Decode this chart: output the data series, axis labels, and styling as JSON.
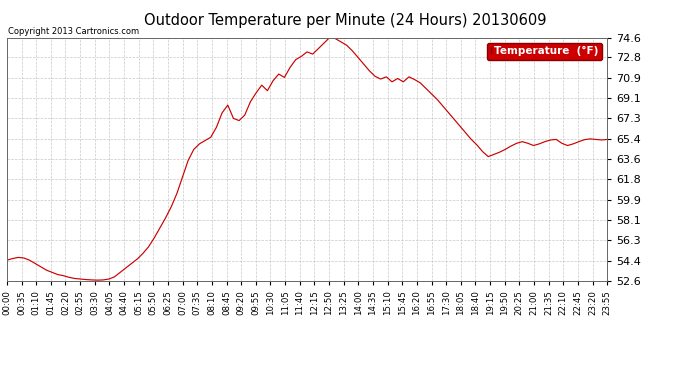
{
  "title": "Outdoor Temperature per Minute (24 Hours) 20130609",
  "copyright_text": "Copyright 2013 Cartronics.com",
  "legend_label": "Temperature  (°F)",
  "line_color": "#cc0000",
  "legend_bg": "#cc0000",
  "legend_text_color": "#ffffff",
  "bg_color": "#ffffff",
  "grid_color": "#bbbbbb",
  "yticks": [
    52.6,
    54.4,
    56.3,
    58.1,
    59.9,
    61.8,
    63.6,
    65.4,
    67.3,
    69.1,
    70.9,
    72.8,
    74.6
  ],
  "ylim": [
    52.6,
    74.6
  ],
  "xtick_labels": [
    "00:00",
    "00:35",
    "01:10",
    "01:45",
    "02:20",
    "02:55",
    "03:30",
    "04:05",
    "04:40",
    "05:15",
    "05:50",
    "06:25",
    "07:00",
    "07:35",
    "08:10",
    "08:45",
    "09:20",
    "09:55",
    "10:30",
    "11:05",
    "11:40",
    "12:15",
    "12:50",
    "13:25",
    "14:00",
    "14:35",
    "15:10",
    "15:45",
    "16:20",
    "16:55",
    "17:30",
    "18:05",
    "18:40",
    "19:15",
    "19:50",
    "20:25",
    "21:00",
    "21:35",
    "22:10",
    "22:45",
    "23:20",
    "23:55"
  ],
  "temp_data": [
    54.5,
    54.65,
    54.75,
    54.7,
    54.5,
    54.2,
    53.9,
    53.6,
    53.4,
    53.2,
    53.1,
    52.95,
    52.85,
    52.8,
    52.75,
    52.72,
    52.7,
    52.72,
    52.8,
    53.0,
    53.4,
    53.8,
    54.2,
    54.6,
    55.1,
    55.7,
    56.5,
    57.4,
    58.3,
    59.3,
    60.5,
    62.0,
    63.5,
    64.5,
    65.0,
    65.3,
    65.6,
    66.5,
    67.8,
    68.5,
    67.3,
    67.1,
    67.6,
    68.8,
    69.6,
    70.3,
    69.8,
    70.7,
    71.3,
    71.0,
    71.9,
    72.6,
    72.9,
    73.3,
    73.1,
    73.6,
    74.1,
    74.6,
    74.5,
    74.2,
    73.9,
    73.4,
    72.8,
    72.2,
    71.6,
    71.1,
    70.85,
    71.05,
    70.6,
    70.9,
    70.6,
    71.05,
    70.8,
    70.5,
    70.0,
    69.5,
    69.0,
    68.4,
    67.8,
    67.2,
    66.6,
    66.0,
    65.4,
    64.9,
    64.3,
    63.85,
    64.05,
    64.25,
    64.5,
    64.8,
    65.05,
    65.2,
    65.05,
    64.85,
    65.0,
    65.2,
    65.35,
    65.4,
    65.05,
    64.85,
    65.0,
    65.2,
    65.38,
    65.45,
    65.4,
    65.35,
    65.4
  ]
}
